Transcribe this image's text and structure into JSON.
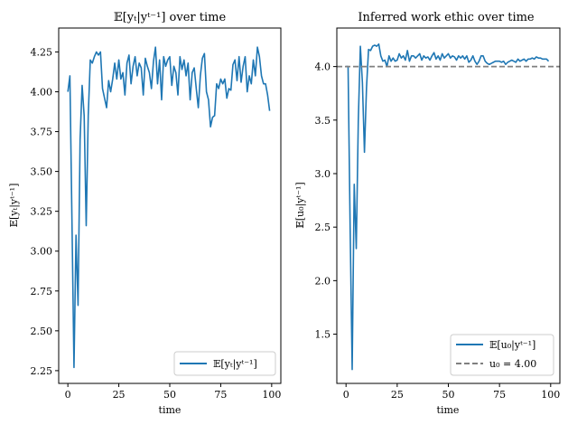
{
  "chart_data": [
    {
      "type": "line",
      "title": "𝔼[yₜ|yᵗ⁻¹] over time",
      "xlabel": "time",
      "ylabel": "𝔼[yₜ|yᵗ⁻¹]",
      "xlim": [
        -4.5,
        104.5
      ],
      "ylim": [
        2.17,
        4.4
      ],
      "xticks": [
        "0",
        "25",
        "50",
        "75",
        "100"
      ],
      "yticks": [
        "2.25",
        "2.50",
        "2.75",
        "3.00",
        "3.25",
        "3.50",
        "3.75",
        "4.00",
        "4.25"
      ],
      "grid": false,
      "legend_position": "lower-right",
      "series": [
        {
          "name": "𝔼[yₜ|yᵗ⁻¹]",
          "color": "#1f77b4",
          "x": [
            0,
            1,
            2,
            3,
            4,
            5,
            6,
            7,
            8,
            9,
            10,
            11,
            12,
            13,
            14,
            15,
            16,
            17,
            18,
            19,
            20,
            21,
            22,
            23,
            24,
            25,
            26,
            27,
            28,
            29,
            30,
            31,
            32,
            33,
            34,
            35,
            36,
            37,
            38,
            39,
            40,
            41,
            42,
            43,
            44,
            45,
            46,
            47,
            48,
            49,
            50,
            51,
            52,
            53,
            54,
            55,
            56,
            57,
            58,
            59,
            60,
            61,
            62,
            63,
            64,
            65,
            66,
            67,
            68,
            69,
            70,
            71,
            72,
            73,
            74,
            75,
            76,
            77,
            78,
            79,
            80,
            81,
            82,
            83,
            84,
            85,
            86,
            87,
            88,
            89,
            90,
            91,
            92,
            93,
            94,
            95,
            96,
            97,
            98,
            99
          ],
          "y": [
            4.0,
            4.1,
            3.2,
            2.27,
            3.1,
            2.66,
            3.7,
            4.04,
            3.85,
            3.16,
            3.85,
            4.2,
            4.18,
            4.22,
            4.25,
            4.23,
            4.25,
            4.02,
            3.96,
            3.9,
            4.07,
            4.0,
            4.08,
            4.18,
            4.08,
            4.2,
            4.08,
            4.12,
            3.98,
            4.18,
            4.23,
            4.05,
            4.16,
            4.22,
            4.1,
            4.18,
            4.15,
            3.98,
            4.21,
            4.16,
            4.12,
            4.02,
            4.19,
            4.28,
            4.05,
            4.2,
            3.95,
            4.22,
            4.16,
            4.2,
            4.22,
            4.04,
            4.16,
            4.12,
            3.98,
            4.22,
            4.14,
            4.2,
            4.1,
            4.18,
            3.95,
            4.12,
            4.15,
            4.02,
            3.9,
            4.1,
            4.21,
            4.24,
            4.0,
            3.95,
            3.78,
            3.84,
            3.85,
            4.05,
            4.02,
            4.08,
            4.05,
            4.08,
            3.96,
            4.02,
            4.01,
            4.17,
            4.2,
            4.07,
            4.22,
            4.06,
            4.16,
            4.22,
            4.0,
            4.1,
            4.05,
            4.2,
            4.1,
            4.28,
            4.22,
            4.1,
            4.05,
            4.05,
            3.98,
            3.88
          ]
        }
      ]
    },
    {
      "type": "line",
      "title": "Inferred work ethic over time",
      "xlabel": "time",
      "ylabel": "𝔼[u₀|yᵗ⁻¹]",
      "xlim": [
        -4.5,
        104.5
      ],
      "ylim": [
        1.04,
        4.36
      ],
      "xticks": [
        "0",
        "25",
        "50",
        "75",
        "100"
      ],
      "yticks": [
        "1.5",
        "2.0",
        "2.5",
        "3.0",
        "3.5",
        "4.0"
      ],
      "grid": false,
      "legend_position": "lower-right",
      "series": [
        {
          "name": "𝔼[u₀|yᵗ⁻¹]",
          "color": "#1f77b4",
          "style": "solid",
          "x": [
            0,
            1,
            2,
            3,
            4,
            5,
            6,
            7,
            8,
            9,
            10,
            11,
            12,
            13,
            14,
            15,
            16,
            17,
            18,
            19,
            20,
            21,
            22,
            23,
            24,
            25,
            26,
            27,
            28,
            29,
            30,
            31,
            32,
            33,
            34,
            35,
            36,
            37,
            38,
            39,
            40,
            41,
            42,
            43,
            44,
            45,
            46,
            47,
            48,
            49,
            50,
            51,
            52,
            53,
            54,
            55,
            56,
            57,
            58,
            59,
            60,
            61,
            62,
            63,
            64,
            65,
            66,
            67,
            68,
            69,
            70,
            71,
            72,
            73,
            74,
            75,
            76,
            77,
            78,
            79,
            80,
            81,
            82,
            83,
            84,
            85,
            86,
            87,
            88,
            89,
            90,
            91,
            92,
            93,
            94,
            95,
            96,
            97,
            98,
            99
          ],
          "y": [
            4.0,
            4.0,
            2.5,
            1.17,
            2.9,
            2.3,
            3.5,
            4.19,
            3.85,
            3.2,
            3.8,
            4.16,
            4.15,
            4.19,
            4.2,
            4.19,
            4.21,
            4.1,
            4.05,
            4.06,
            4.0,
            4.1,
            4.05,
            4.08,
            4.05,
            4.06,
            4.12,
            4.08,
            4.1,
            4.06,
            4.15,
            4.05,
            4.1,
            4.1,
            4.08,
            4.1,
            4.12,
            4.06,
            4.1,
            4.08,
            4.09,
            4.06,
            4.1,
            4.13,
            4.07,
            4.1,
            4.06,
            4.12,
            4.08,
            4.1,
            4.12,
            4.08,
            4.1,
            4.09,
            4.06,
            4.1,
            4.08,
            4.1,
            4.07,
            4.1,
            4.04,
            4.06,
            4.1,
            4.05,
            4.02,
            4.05,
            4.1,
            4.1,
            4.05,
            4.03,
            4.02,
            4.03,
            4.04,
            4.05,
            4.05,
            4.05,
            4.04,
            4.05,
            4.02,
            4.04,
            4.05,
            4.06,
            4.05,
            4.04,
            4.07,
            4.05,
            4.06,
            4.07,
            4.05,
            4.07,
            4.07,
            4.08,
            4.07,
            4.09,
            4.08,
            4.08,
            4.07,
            4.07,
            4.07,
            4.05
          ]
        },
        {
          "name": "u₀ = 4.00",
          "color": "#808080",
          "style": "dashed",
          "hline": 4.0
        }
      ]
    }
  ]
}
